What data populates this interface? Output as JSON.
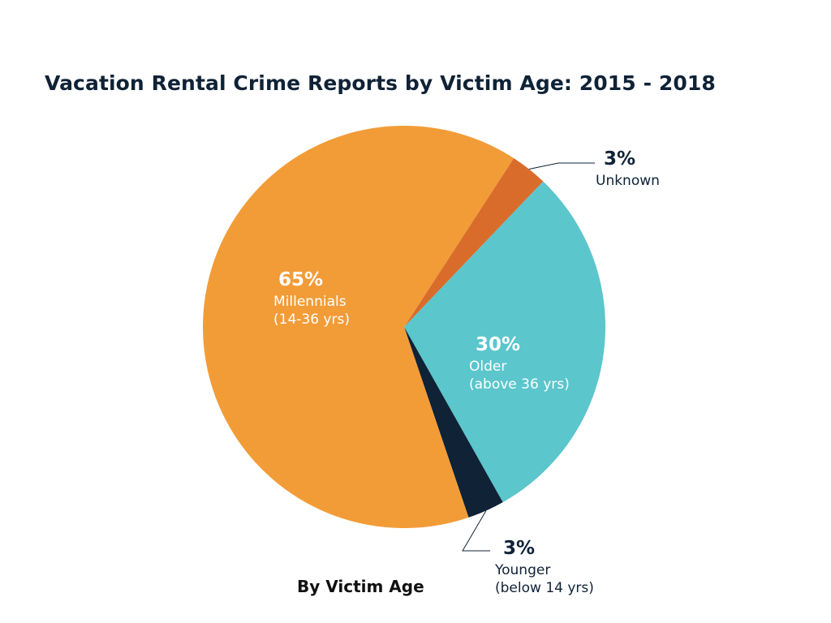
{
  "chart_data": {
    "type": "pie",
    "title": "Vacation Rental Crime Reports by Victim Age: 2015 - 2018",
    "footer": "By Victim Age",
    "slices": [
      {
        "percent_label": "3%",
        "name": "Unknown",
        "sub": "",
        "value": 3,
        "color": "#d96c2b"
      },
      {
        "percent_label": "30%",
        "name": "Older",
        "sub": "(above 36 yrs)",
        "value": 30,
        "color": "#5bc6cc"
      },
      {
        "percent_label": "3%",
        "name": "Younger",
        "sub": "(below 14 yrs)",
        "value": 3,
        "color": "#0f2236"
      },
      {
        "percent_label": "65%",
        "name": "Millennials",
        "sub": "(14-36 yrs)",
        "value": 65,
        "color": "#f29c38"
      }
    ]
  }
}
